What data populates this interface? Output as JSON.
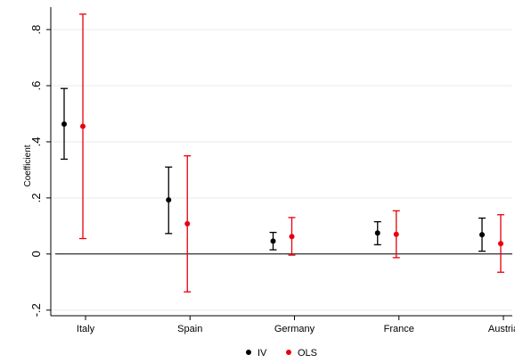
{
  "chart_data": {
    "type": "scatter",
    "ylabel": "Coefficient",
    "xlabel": "",
    "title": "",
    "categories": [
      "Italy",
      "Spain",
      "Germany",
      "France",
      "Austria"
    ],
    "ylim": [
      -0.22,
      0.88
    ],
    "yticks": [
      -0.2,
      0,
      0.2,
      0.4,
      0.6,
      0.8
    ],
    "ytick_labels": [
      "-.2",
      "0",
      ".2",
      ".4",
      ".6",
      ".8"
    ],
    "grid": true,
    "legend_position": "bottom",
    "series": [
      {
        "name": "IV",
        "color": "#000000",
        "estimates": [
          0.463,
          0.193,
          0.046,
          0.075,
          0.069
        ],
        "ci_low": [
          0.338,
          0.073,
          0.015,
          0.033,
          0.01
        ],
        "ci_high": [
          0.59,
          0.31,
          0.077,
          0.115,
          0.128
        ]
      },
      {
        "name": "OLS",
        "color": "#e8000b",
        "estimates": [
          0.455,
          0.108,
          0.062,
          0.07,
          0.037
        ],
        "ci_low": [
          0.055,
          -0.135,
          -0.004,
          -0.013,
          -0.065
        ],
        "ci_high": [
          0.855,
          0.35,
          0.13,
          0.154,
          0.14
        ]
      }
    ]
  }
}
